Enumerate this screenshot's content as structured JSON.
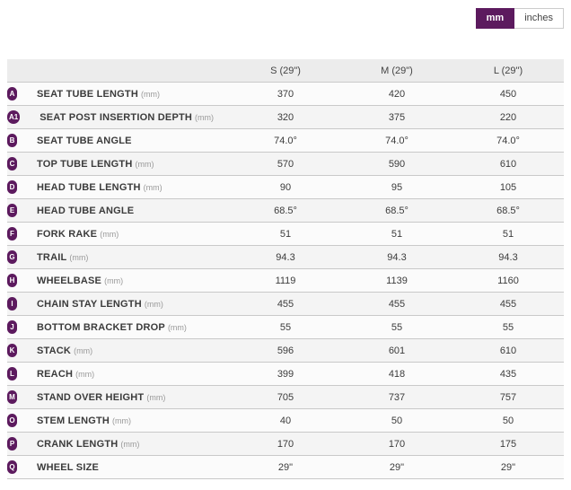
{
  "unit_toggle": {
    "mm_label": "mm",
    "inches_label": "inches",
    "selected": "mm"
  },
  "colors": {
    "accent_purple": "#5c1a5e",
    "header_bg": "#ececec",
    "row_light": "#fbfbfb",
    "row_dark": "#f4f4f4",
    "border": "#c9c9c9"
  },
  "table": {
    "columns": [
      "S (29\")",
      "M (29\")",
      "L (29\")"
    ],
    "rows": [
      {
        "badge": "A",
        "label": "SEAT TUBE LENGTH",
        "unit": "(mm)",
        "values": [
          "370",
          "420",
          "450"
        ]
      },
      {
        "badge": "A1",
        "label": "SEAT POST INSERTION DEPTH",
        "unit": "(mm)",
        "values": [
          "320",
          "375",
          "220"
        ]
      },
      {
        "badge": "B",
        "label": "SEAT TUBE ANGLE",
        "unit": "",
        "values": [
          "74.0°",
          "74.0°",
          "74.0°"
        ]
      },
      {
        "badge": "C",
        "label": "TOP TUBE LENGTH",
        "unit": "(mm)",
        "values": [
          "570",
          "590",
          "610"
        ]
      },
      {
        "badge": "D",
        "label": "HEAD TUBE LENGTH",
        "unit": "(mm)",
        "values": [
          "90",
          "95",
          "105"
        ]
      },
      {
        "badge": "E",
        "label": "HEAD TUBE ANGLE",
        "unit": "",
        "values": [
          "68.5°",
          "68.5°",
          "68.5°"
        ]
      },
      {
        "badge": "F",
        "label": "FORK RAKE",
        "unit": "(mm)",
        "values": [
          "51",
          "51",
          "51"
        ]
      },
      {
        "badge": "G",
        "label": "TRAIL",
        "unit": "(mm)",
        "values": [
          "94.3",
          "94.3",
          "94.3"
        ]
      },
      {
        "badge": "H",
        "label": "WHEELBASE",
        "unit": "(mm)",
        "values": [
          "1119",
          "1139",
          "1160"
        ]
      },
      {
        "badge": "I",
        "label": "CHAIN STAY LENGTH",
        "unit": "(mm)",
        "values": [
          "455",
          "455",
          "455"
        ]
      },
      {
        "badge": "J",
        "label": "BOTTOM BRACKET DROP",
        "unit": "(mm)",
        "values": [
          "55",
          "55",
          "55"
        ]
      },
      {
        "badge": "K",
        "label": "STACK",
        "unit": "(mm)",
        "values": [
          "596",
          "601",
          "610"
        ]
      },
      {
        "badge": "L",
        "label": "REACH",
        "unit": "(mm)",
        "values": [
          "399",
          "418",
          "435"
        ]
      },
      {
        "badge": "M",
        "label": "STAND OVER HEIGHT",
        "unit": "(mm)",
        "values": [
          "705",
          "737",
          "757"
        ]
      },
      {
        "badge": "O",
        "label": "STEM LENGTH",
        "unit": "(mm)",
        "values": [
          "40",
          "50",
          "50"
        ]
      },
      {
        "badge": "P",
        "label": "CRANK LENGTH",
        "unit": "(mm)",
        "values": [
          "170",
          "170",
          "175"
        ]
      },
      {
        "badge": "Q",
        "label": "WHEEL SIZE",
        "unit": "",
        "values": [
          "29\"",
          "29\"",
          "29\""
        ]
      }
    ]
  }
}
